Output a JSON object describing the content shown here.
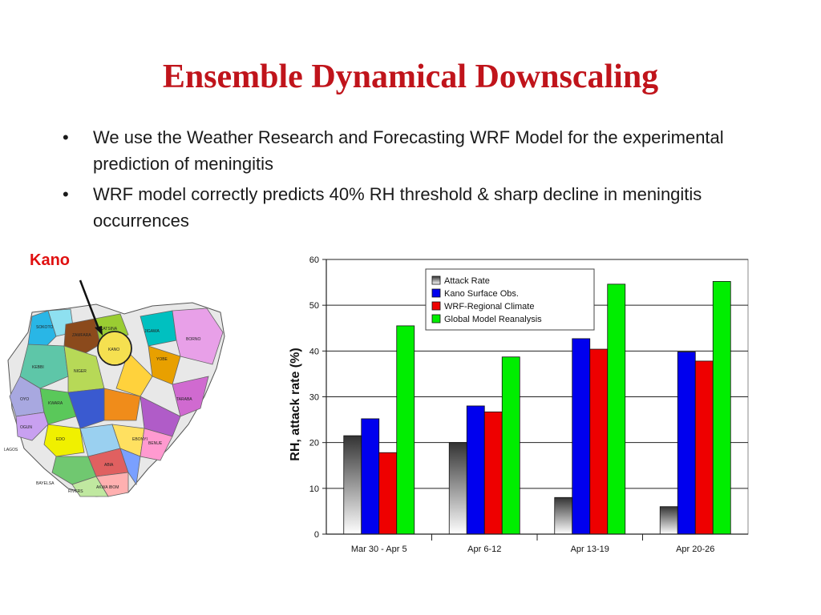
{
  "slide": {
    "title": "Ensemble Dynamical Downscaling",
    "bullets": [
      {
        "marker": "•",
        "text": "We use the Weather Research and Forecasting WRF Model for the experimental prediction of meningitis"
      },
      {
        "marker": "•",
        "text": "WRF model correctly predicts 40% RH threshold & sharp decline in meningitis occurrences"
      }
    ]
  },
  "map": {
    "callout_label": "Kano",
    "state_labels": [
      "SOKOTO",
      "KEBBI",
      "ZAMFARA",
      "KATSINA",
      "KANO",
      "JIGAWA",
      "YOBE",
      "BORNO",
      "NIGER",
      "KWARA",
      "OYO",
      "OGUN",
      "LAGOS",
      "EDO",
      "BAYELSA",
      "RIVERS",
      "TARABA",
      "BENUE",
      "ABIA",
      "EBONYI",
      "AKWA IBOM"
    ],
    "colors": {
      "kano_outline": "#e0b000",
      "arrow": "#111111"
    }
  },
  "chart_data": {
    "type": "bar",
    "categories": [
      "Mar 30 - Apr 5",
      "Apr 6-12",
      "Apr 13-19",
      "Apr 20-26"
    ],
    "series": [
      {
        "name": "Attack Rate",
        "values": [
          21.5,
          20,
          8,
          6
        ],
        "color": "#555555"
      },
      {
        "name": "Kano Surface Obs.",
        "values": [
          25.2,
          28,
          42.7,
          39.8
        ],
        "color": "#0000ee"
      },
      {
        "name": "WRF-Regional Climate",
        "values": [
          17.8,
          26.7,
          40.4,
          37.8
        ],
        "color": "#ee0000"
      },
      {
        "name": "Global Model Reanalysis",
        "values": [
          45.5,
          38.7,
          54.6,
          55.2
        ],
        "color": "#00ee00"
      }
    ],
    "title": "",
    "xlabel": "",
    "ylabel": "RH, attack rate (%)",
    "ylim": [
      0,
      60
    ],
    "yticks": [
      "0",
      "10",
      "20",
      "30",
      "40",
      "50",
      "60"
    ],
    "grid": true,
    "legend": "top-right"
  }
}
